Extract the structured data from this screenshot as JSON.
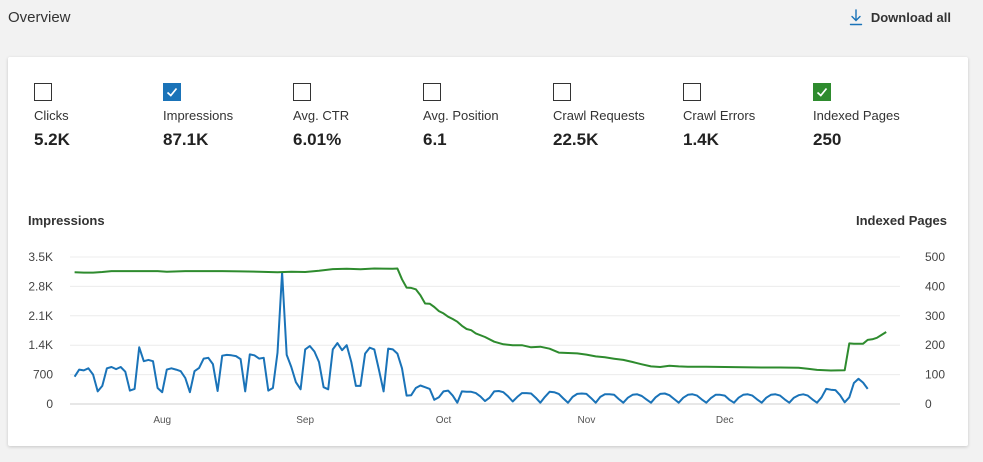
{
  "header": {
    "title": "Overview",
    "download_label": "Download all"
  },
  "metrics": [
    {
      "label": "Clicks",
      "value": "5.2K",
      "checked": false,
      "color": ""
    },
    {
      "label": "Impressions",
      "value": "87.1K",
      "checked": true,
      "color": "#1a73b8"
    },
    {
      "label": "Avg. CTR",
      "value": "6.01%",
      "checked": false,
      "color": ""
    },
    {
      "label": "Avg. Position",
      "value": "6.1",
      "checked": false,
      "color": ""
    },
    {
      "label": "Crawl Requests",
      "value": "22.5K",
      "checked": false,
      "color": ""
    },
    {
      "label": "Crawl Errors",
      "value": "1.4K",
      "checked": false,
      "color": ""
    },
    {
      "label": "Indexed Pages",
      "value": "250",
      "checked": true,
      "color": "#2e8b2e"
    }
  ],
  "chart_data": {
    "type": "line",
    "left_axis_title": "Impressions",
    "right_axis_title": "Indexed Pages",
    "left_ticks": [
      "0",
      "700",
      "1.4K",
      "2.1K",
      "2.8K",
      "3.5K"
    ],
    "left_ylim": [
      0,
      3500
    ],
    "right_ticks": [
      "0",
      "100",
      "200",
      "300",
      "400",
      "500"
    ],
    "right_ylim": [
      0,
      500
    ],
    "x_ticks": [
      "Aug",
      "Sep",
      "Oct",
      "Nov",
      "Dec"
    ],
    "x_tick_days": [
      20,
      51,
      81,
      112,
      142
    ],
    "x_range_days": [
      0,
      180
    ],
    "grid": true,
    "series": [
      {
        "name": "Impressions",
        "axis": "left",
        "color": "#1a73b8",
        "points": [
          [
            1,
            650
          ],
          [
            2,
            820
          ],
          [
            3,
            800
          ],
          [
            4,
            850
          ],
          [
            5,
            700
          ],
          [
            6,
            300
          ],
          [
            7,
            430
          ],
          [
            8,
            850
          ],
          [
            9,
            880
          ],
          [
            10,
            830
          ],
          [
            11,
            880
          ],
          [
            12,
            770
          ],
          [
            13,
            320
          ],
          [
            14,
            360
          ],
          [
            15,
            1350
          ],
          [
            16,
            1020
          ],
          [
            17,
            1050
          ],
          [
            18,
            1020
          ],
          [
            19,
            380
          ],
          [
            20,
            280
          ],
          [
            21,
            820
          ],
          [
            22,
            850
          ],
          [
            23,
            820
          ],
          [
            24,
            780
          ],
          [
            25,
            620
          ],
          [
            26,
            280
          ],
          [
            27,
            780
          ],
          [
            28,
            860
          ],
          [
            29,
            1080
          ],
          [
            30,
            1100
          ],
          [
            31,
            950
          ],
          [
            32,
            310
          ],
          [
            33,
            1150
          ],
          [
            34,
            1170
          ],
          [
            35,
            1160
          ],
          [
            36,
            1140
          ],
          [
            37,
            1070
          ],
          [
            38,
            300
          ],
          [
            39,
            1180
          ],
          [
            40,
            1160
          ],
          [
            41,
            1080
          ],
          [
            42,
            1100
          ],
          [
            43,
            320
          ],
          [
            44,
            380
          ],
          [
            45,
            1220
          ],
          [
            46,
            3130
          ],
          [
            47,
            1170
          ],
          [
            48,
            880
          ],
          [
            49,
            520
          ],
          [
            50,
            350
          ],
          [
            51,
            1300
          ],
          [
            52,
            1380
          ],
          [
            53,
            1250
          ],
          [
            54,
            1000
          ],
          [
            55,
            400
          ],
          [
            56,
            350
          ],
          [
            57,
            1300
          ],
          [
            58,
            1450
          ],
          [
            59,
            1280
          ],
          [
            60,
            1400
          ],
          [
            61,
            1000
          ],
          [
            62,
            430
          ],
          [
            63,
            430
          ],
          [
            64,
            1200
          ],
          [
            65,
            1340
          ],
          [
            66,
            1300
          ],
          [
            67,
            820
          ],
          [
            68,
            300
          ],
          [
            69,
            1320
          ],
          [
            70,
            1300
          ],
          [
            71,
            1200
          ],
          [
            72,
            850
          ],
          [
            73,
            200
          ],
          [
            74,
            210
          ],
          [
            75,
            380
          ],
          [
            76,
            440
          ],
          [
            77,
            400
          ],
          [
            78,
            360
          ],
          [
            79,
            100
          ],
          [
            80,
            160
          ],
          [
            81,
            300
          ],
          [
            82,
            320
          ],
          [
            83,
            200
          ],
          [
            84,
            30
          ],
          [
            85,
            300
          ],
          [
            86,
            290
          ],
          [
            87,
            290
          ],
          [
            88,
            260
          ],
          [
            89,
            180
          ],
          [
            90,
            70
          ],
          [
            91,
            150
          ],
          [
            92,
            300
          ],
          [
            93,
            310
          ],
          [
            94,
            280
          ],
          [
            95,
            180
          ],
          [
            96,
            60
          ],
          [
            97,
            170
          ],
          [
            98,
            260
          ],
          [
            99,
            260
          ],
          [
            100,
            250
          ],
          [
            101,
            150
          ],
          [
            102,
            30
          ],
          [
            103,
            170
          ],
          [
            104,
            290
          ],
          [
            105,
            280
          ],
          [
            106,
            240
          ],
          [
            107,
            130
          ],
          [
            108,
            30
          ],
          [
            109,
            170
          ],
          [
            110,
            240
          ],
          [
            111,
            250
          ],
          [
            112,
            240
          ],
          [
            113,
            140
          ],
          [
            114,
            30
          ],
          [
            115,
            170
          ],
          [
            116,
            230
          ],
          [
            117,
            230
          ],
          [
            118,
            220
          ],
          [
            119,
            120
          ],
          [
            120,
            30
          ],
          [
            121,
            150
          ],
          [
            122,
            220
          ],
          [
            123,
            230
          ],
          [
            124,
            190
          ],
          [
            125,
            110
          ],
          [
            126,
            30
          ],
          [
            127,
            160
          ],
          [
            128,
            240
          ],
          [
            129,
            250
          ],
          [
            130,
            210
          ],
          [
            131,
            120
          ],
          [
            132,
            30
          ],
          [
            133,
            150
          ],
          [
            134,
            220
          ],
          [
            135,
            230
          ],
          [
            136,
            200
          ],
          [
            137,
            110
          ],
          [
            138,
            30
          ],
          [
            139,
            140
          ],
          [
            140,
            220
          ],
          [
            141,
            220
          ],
          [
            142,
            200
          ],
          [
            143,
            100
          ],
          [
            144,
            30
          ],
          [
            145,
            150
          ],
          [
            146,
            220
          ],
          [
            147,
            230
          ],
          [
            148,
            200
          ],
          [
            149,
            110
          ],
          [
            150,
            30
          ],
          [
            151,
            150
          ],
          [
            152,
            220
          ],
          [
            153,
            230
          ],
          [
            154,
            200
          ],
          [
            155,
            110
          ],
          [
            156,
            30
          ],
          [
            157,
            150
          ],
          [
            158,
            210
          ],
          [
            159,
            230
          ],
          [
            160,
            200
          ],
          [
            161,
            110
          ],
          [
            162,
            30
          ],
          [
            163,
            160
          ],
          [
            164,
            360
          ],
          [
            165,
            340
          ],
          [
            166,
            330
          ],
          [
            167,
            210
          ],
          [
            168,
            40
          ],
          [
            169,
            160
          ],
          [
            170,
            500
          ],
          [
            171,
            600
          ],
          [
            172,
            510
          ],
          [
            173,
            360
          ]
        ]
      },
      {
        "name": "Indexed Pages",
        "axis": "right",
        "color": "#2e8b2e",
        "points": [
          [
            1,
            448
          ],
          [
            3,
            447
          ],
          [
            5,
            447
          ],
          [
            7,
            449
          ],
          [
            9,
            452
          ],
          [
            11,
            452
          ],
          [
            15,
            452
          ],
          [
            19,
            452
          ],
          [
            21,
            450
          ],
          [
            25,
            452
          ],
          [
            29,
            452
          ],
          [
            33,
            452
          ],
          [
            37,
            451
          ],
          [
            41,
            450
          ],
          [
            45,
            448
          ],
          [
            48,
            450
          ],
          [
            51,
            449
          ],
          [
            54,
            453
          ],
          [
            57,
            459
          ],
          [
            60,
            460
          ],
          [
            63,
            458
          ],
          [
            66,
            461
          ],
          [
            70,
            460
          ],
          [
            71,
            461
          ],
          [
            72,
            424
          ],
          [
            73,
            396
          ],
          [
            74,
            395
          ],
          [
            75,
            390
          ],
          [
            76,
            370
          ],
          [
            77,
            342
          ],
          [
            78,
            341
          ],
          [
            79,
            330
          ],
          [
            80,
            316
          ],
          [
            81,
            308
          ],
          [
            82,
            297
          ],
          [
            83,
            289
          ],
          [
            84,
            280
          ],
          [
            85,
            266
          ],
          [
            86,
            255
          ],
          [
            87,
            251
          ],
          [
            88,
            240
          ],
          [
            90,
            228
          ],
          [
            92,
            212
          ],
          [
            94,
            203
          ],
          [
            96,
            200
          ],
          [
            98,
            200
          ],
          [
            100,
            193
          ],
          [
            102,
            195
          ],
          [
            104,
            188
          ],
          [
            106,
            175
          ],
          [
            110,
            172
          ],
          [
            112,
            168
          ],
          [
            114,
            162
          ],
          [
            116,
            159
          ],
          [
            118,
            154
          ],
          [
            120,
            150
          ],
          [
            122,
            143
          ],
          [
            124,
            135
          ],
          [
            126,
            128
          ],
          [
            128,
            126
          ],
          [
            130,
            130
          ],
          [
            132,
            128
          ],
          [
            134,
            127
          ],
          [
            138,
            127
          ],
          [
            142,
            126
          ],
          [
            146,
            125
          ],
          [
            150,
            124
          ],
          [
            154,
            124
          ],
          [
            158,
            123
          ],
          [
            160,
            120
          ],
          [
            162,
            116
          ],
          [
            165,
            114
          ],
          [
            168,
            115
          ],
          [
            169,
            206
          ],
          [
            170,
            205
          ],
          [
            172,
            205
          ],
          [
            173,
            218
          ],
          [
            174,
            220
          ],
          [
            175,
            225
          ],
          [
            176,
            235
          ],
          [
            177,
            245
          ]
        ]
      }
    ]
  }
}
